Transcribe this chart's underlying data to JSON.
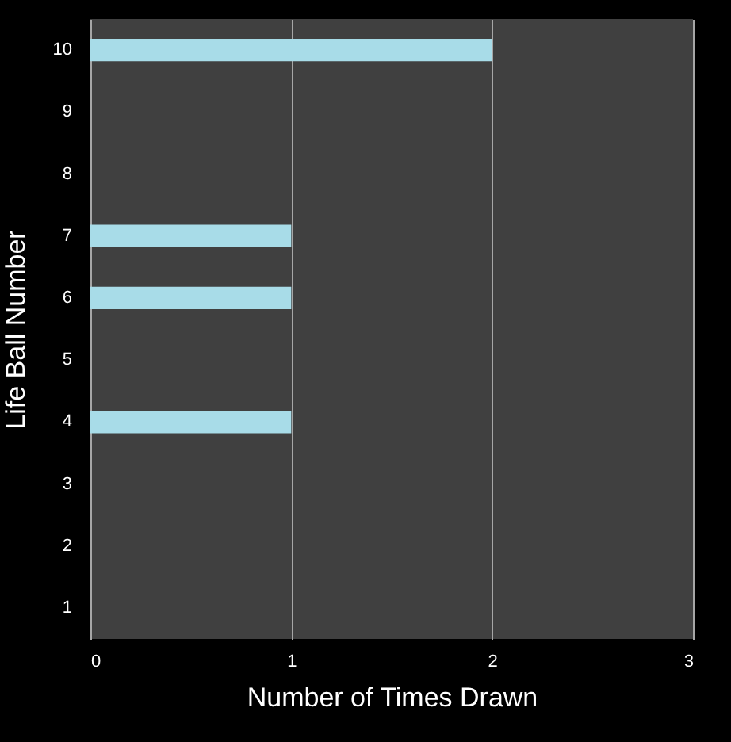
{
  "chart_data": {
    "type": "bar",
    "orientation": "horizontal",
    "xlabel": "Number of Times Drawn",
    "ylabel": "Life Ball Number",
    "categories": [
      "10",
      "9",
      "8",
      "7",
      "6",
      "5",
      "4",
      "3",
      "2",
      "1"
    ],
    "values": [
      2,
      0,
      0,
      1,
      1,
      0,
      1,
      0,
      0,
      0
    ],
    "color": "#a8dce8",
    "xlim": [
      0,
      3
    ],
    "xticks": [
      0,
      1,
      2,
      3
    ],
    "grid": "x"
  }
}
